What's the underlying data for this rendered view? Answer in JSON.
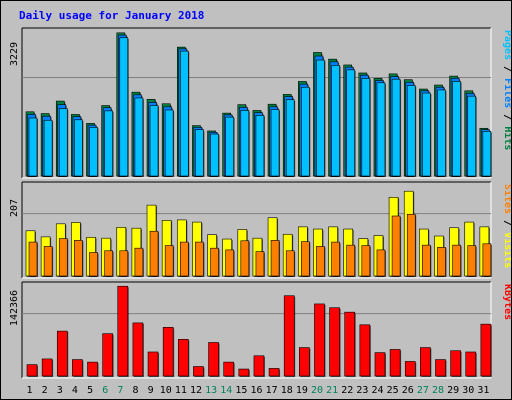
{
  "title": "Daily usage for January 2018",
  "colors": {
    "background": "#c0c0c0",
    "panel": "#c0c0c0",
    "title": "#0000ff",
    "hits": "#008040",
    "files": "#0080ff",
    "pages": "#00c0ff",
    "visits": "#ffff00",
    "sites": "#ff8000",
    "kbytes": "#ff0000",
    "weekend": "#00805c",
    "weekday": "#000000"
  },
  "chart_data": [
    {
      "type": "bar",
      "panel": "hits-files-pages",
      "ymax_label": "3229",
      "ymax": 3229,
      "ylim": [
        0,
        3229
      ],
      "legend": [
        {
          "name": "Hits",
          "color": "#008040"
        },
        {
          "name": "Files",
          "color": "#0080ff"
        },
        {
          "name": "Pages",
          "color": "#00c0ff"
        }
      ],
      "categories": [
        "1",
        "2",
        "3",
        "4",
        "5",
        "6",
        "7",
        "8",
        "9",
        "10",
        "11",
        "12",
        "13",
        "14",
        "15",
        "16",
        "17",
        "18",
        "19",
        "20",
        "21",
        "22",
        "23",
        "24",
        "25",
        "26",
        "27",
        "28",
        "29",
        "30",
        "31"
      ],
      "series": [
        {
          "name": "Hits",
          "values": [
            1440,
            1400,
            1680,
            1380,
            1180,
            1580,
            3210,
            1880,
            1720,
            1620,
            2890,
            1130,
            1010,
            1410,
            1600,
            1470,
            1610,
            1830,
            2120,
            2770,
            2620,
            2490,
            2310,
            2190,
            2290,
            2160,
            1950,
            2040,
            2240,
            1910,
            1070
          ]
        },
        {
          "name": "Files",
          "values": [
            1380,
            1340,
            1600,
            1330,
            1140,
            1530,
            3160,
            1820,
            1650,
            1550,
            2850,
            1090,
            980,
            1370,
            1540,
            1420,
            1550,
            1780,
            2060,
            2690,
            2560,
            2440,
            2260,
            2140,
            2230,
            2100,
            1910,
            1990,
            2190,
            1850,
            1040
          ]
        },
        {
          "name": "Pages",
          "values": [
            1300,
            1250,
            1510,
            1260,
            1090,
            1460,
            3100,
            1750,
            1580,
            1480,
            2800,
            1040,
            940,
            1320,
            1470,
            1360,
            1490,
            1710,
            1990,
            2600,
            2480,
            2380,
            2190,
            2090,
            2170,
            2030,
            1860,
            1930,
            2120,
            1790,
            1000
          ]
        }
      ]
    },
    {
      "type": "bar",
      "panel": "visits-sites",
      "ymax_label": "207",
      "ymax": 207,
      "ylim": [
        0,
        207
      ],
      "legend": [
        {
          "name": "Visits",
          "color": "#ffff00"
        },
        {
          "name": "Sites",
          "color": "#ff8000"
        }
      ],
      "categories": [
        "1",
        "2",
        "3",
        "4",
        "5",
        "6",
        "7",
        "8",
        "9",
        "10",
        "11",
        "12",
        "13",
        "14",
        "15",
        "16",
        "17",
        "18",
        "19",
        "20",
        "21",
        "22",
        "23",
        "24",
        "25",
        "26",
        "27",
        "28",
        "29",
        "30",
        "31"
      ],
      "series": [
        {
          "name": "Visits",
          "values": [
            104,
            90,
            120,
            123,
            89,
            87,
            112,
            110,
            163,
            128,
            129,
            124,
            95,
            85,
            107,
            87,
            134,
            96,
            113,
            108,
            113,
            108,
            86,
            93,
            181,
            195,
            108,
            92,
            111,
            124,
            113
          ]
        },
        {
          "name": "Sites",
          "values": [
            78,
            68,
            86,
            82,
            54,
            58,
            58,
            64,
            103,
            70,
            78,
            78,
            64,
            60,
            81,
            56,
            82,
            58,
            79,
            68,
            78,
            71,
            70,
            60,
            138,
            142,
            71,
            66,
            71,
            70,
            74
          ]
        }
      ]
    },
    {
      "type": "bar",
      "panel": "kbytes",
      "ymax_label": "142366",
      "ymax": 142366,
      "ylim": [
        0,
        142366
      ],
      "legend": [
        {
          "name": "KBytes",
          "color": "#ff0000"
        }
      ],
      "categories": [
        "1",
        "2",
        "3",
        "4",
        "5",
        "6",
        "7",
        "8",
        "9",
        "10",
        "11",
        "12",
        "13",
        "14",
        "15",
        "16",
        "17",
        "18",
        "19",
        "20",
        "21",
        "22",
        "23",
        "24",
        "25",
        "26",
        "27",
        "28",
        "29",
        "30",
        "31"
      ],
      "series": [
        {
          "name": "KBytes",
          "values": [
            18000,
            27000,
            71000,
            26000,
            22000,
            67000,
            142000,
            84000,
            38000,
            77000,
            58000,
            15000,
            53000,
            22000,
            11000,
            32000,
            12000,
            127000,
            45000,
            114000,
            108000,
            101000,
            81000,
            37000,
            42000,
            23000,
            45000,
            26000,
            40000,
            38000,
            82000
          ]
        }
      ]
    }
  ],
  "x_labels": [
    {
      "label": "1",
      "weekend": false
    },
    {
      "label": "2",
      "weekend": false
    },
    {
      "label": "3",
      "weekend": false
    },
    {
      "label": "4",
      "weekend": false
    },
    {
      "label": "5",
      "weekend": false
    },
    {
      "label": "6",
      "weekend": true
    },
    {
      "label": "7",
      "weekend": true
    },
    {
      "label": "8",
      "weekend": false
    },
    {
      "label": "9",
      "weekend": false
    },
    {
      "label": "10",
      "weekend": false
    },
    {
      "label": "11",
      "weekend": false
    },
    {
      "label": "12",
      "weekend": false
    },
    {
      "label": "13",
      "weekend": true
    },
    {
      "label": "14",
      "weekend": true
    },
    {
      "label": "15",
      "weekend": false
    },
    {
      "label": "16",
      "weekend": false
    },
    {
      "label": "17",
      "weekend": false
    },
    {
      "label": "18",
      "weekend": false
    },
    {
      "label": "19",
      "weekend": false
    },
    {
      "label": "20",
      "weekend": true
    },
    {
      "label": "21",
      "weekend": true
    },
    {
      "label": "22",
      "weekend": false
    },
    {
      "label": "23",
      "weekend": false
    },
    {
      "label": "24",
      "weekend": false
    },
    {
      "label": "25",
      "weekend": false
    },
    {
      "label": "26",
      "weekend": false
    },
    {
      "label": "27",
      "weekend": true
    },
    {
      "label": "28",
      "weekend": true
    },
    {
      "label": "29",
      "weekend": false
    },
    {
      "label": "30",
      "weekend": false
    },
    {
      "label": "31",
      "weekend": false
    }
  ]
}
